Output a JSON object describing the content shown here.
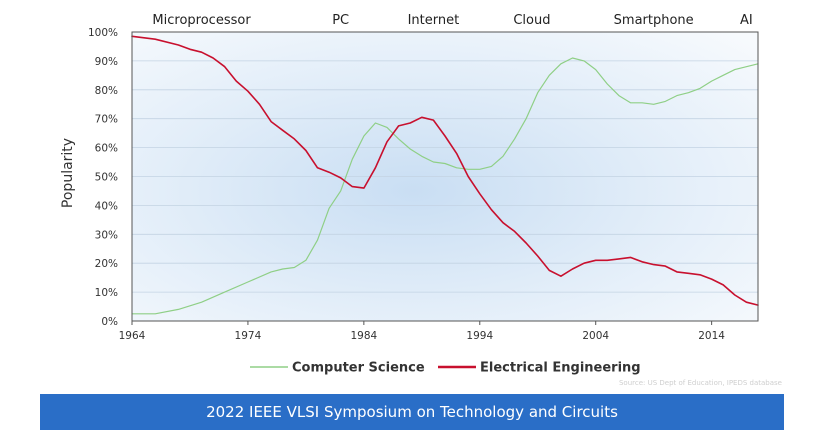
{
  "chart_data": {
    "type": "line",
    "ylabel": "Popularity",
    "xlabel": "",
    "xlim": [
      1964,
      2018
    ],
    "ylim": [
      0,
      100
    ],
    "x_ticks": [
      1964,
      1974,
      1984,
      1994,
      2004,
      2014
    ],
    "y_ticks": [
      {
        "value": 0,
        "label": "0%"
      },
      {
        "value": 10,
        "label": "10%"
      },
      {
        "value": 20,
        "label": "20%"
      },
      {
        "value": 30,
        "label": "30%"
      },
      {
        "value": 40,
        "label": "40%"
      },
      {
        "value": 50,
        "label": "50%"
      },
      {
        "value": 60,
        "label": "60%"
      },
      {
        "value": 70,
        "label": "70%"
      },
      {
        "value": 80,
        "label": "80%"
      },
      {
        "value": 90,
        "label": "90%"
      },
      {
        "value": 100,
        "label": "100%"
      }
    ],
    "grid": true,
    "legend": "bottom-center",
    "annotations": [
      {
        "text": "Microprocessor",
        "x": 1970
      },
      {
        "text": "PC",
        "x": 1982
      },
      {
        "text": "Internet",
        "x": 1990
      },
      {
        "text": "Cloud",
        "x": 1998.5
      },
      {
        "text": "Smartphone",
        "x": 2009
      },
      {
        "text": "AI",
        "x": 2017
      }
    ],
    "series": [
      {
        "name": "Computer Science",
        "color": "#8fcf86",
        "points": [
          [
            1964,
            2.5
          ],
          [
            1966,
            2.5
          ],
          [
            1968,
            4
          ],
          [
            1970,
            6.5
          ],
          [
            1972,
            10
          ],
          [
            1974,
            13.5
          ],
          [
            1976,
            17
          ],
          [
            1977,
            18
          ],
          [
            1978,
            18.5
          ],
          [
            1979,
            21
          ],
          [
            1980,
            28
          ],
          [
            1981,
            39
          ],
          [
            1982,
            45
          ],
          [
            1983,
            56
          ],
          [
            1984,
            64
          ],
          [
            1985,
            68.5
          ],
          [
            1986,
            67
          ],
          [
            1987,
            63
          ],
          [
            1988,
            59.5
          ],
          [
            1989,
            57
          ],
          [
            1990,
            55
          ],
          [
            1991,
            54.5
          ],
          [
            1992,
            53
          ],
          [
            1993,
            52.5
          ],
          [
            1994,
            52.5
          ],
          [
            1995,
            53.5
          ],
          [
            1996,
            57
          ],
          [
            1997,
            63
          ],
          [
            1998,
            70
          ],
          [
            1999,
            79
          ],
          [
            2000,
            85
          ],
          [
            2001,
            89
          ],
          [
            2002,
            91
          ],
          [
            2003,
            90
          ],
          [
            2004,
            87
          ],
          [
            2005,
            82
          ],
          [
            2006,
            78
          ],
          [
            2007,
            75.5
          ],
          [
            2008,
            75.5
          ],
          [
            2009,
            75
          ],
          [
            2010,
            76
          ],
          [
            2011,
            78
          ],
          [
            2012,
            79
          ],
          [
            2013,
            80.5
          ],
          [
            2014,
            83
          ],
          [
            2015,
            85
          ],
          [
            2016,
            87
          ],
          [
            2017,
            88
          ],
          [
            2018,
            89
          ]
        ]
      },
      {
        "name": "Electrical Engineering",
        "color": "#c8102e",
        "points": [
          [
            1964,
            98.5
          ],
          [
            1966,
            97.5
          ],
          [
            1968,
            95.5
          ],
          [
            1969,
            94
          ],
          [
            1970,
            93
          ],
          [
            1971,
            91
          ],
          [
            1972,
            88
          ],
          [
            1973,
            83
          ],
          [
            1974,
            79.5
          ],
          [
            1975,
            75
          ],
          [
            1976,
            69
          ],
          [
            1977,
            66
          ],
          [
            1978,
            63
          ],
          [
            1979,
            59
          ],
          [
            1980,
            53
          ],
          [
            1981,
            51.5
          ],
          [
            1982,
            49.5
          ],
          [
            1983,
            46.5
          ],
          [
            1984,
            46
          ],
          [
            1985,
            53
          ],
          [
            1986,
            62
          ],
          [
            1987,
            67.5
          ],
          [
            1988,
            68.5
          ],
          [
            1989,
            70.5
          ],
          [
            1990,
            69.5
          ],
          [
            1991,
            64
          ],
          [
            1992,
            58
          ],
          [
            1993,
            50
          ],
          [
            1994,
            44
          ],
          [
            1995,
            38.5
          ],
          [
            1996,
            34
          ],
          [
            1997,
            31
          ],
          [
            1998,
            27
          ],
          [
            1999,
            22.5
          ],
          [
            2000,
            17.5
          ],
          [
            2001,
            15.5
          ],
          [
            2002,
            18
          ],
          [
            2003,
            20
          ],
          [
            2004,
            21
          ],
          [
            2005,
            21
          ],
          [
            2006,
            21.5
          ],
          [
            2007,
            22
          ],
          [
            2008,
            20.5
          ],
          [
            2009,
            19.5
          ],
          [
            2010,
            19
          ],
          [
            2011,
            17
          ],
          [
            2012,
            16.5
          ],
          [
            2013,
            16
          ],
          [
            2014,
            14.5
          ],
          [
            2015,
            12.5
          ],
          [
            2016,
            9
          ],
          [
            2017,
            6.5
          ],
          [
            2018,
            5.5
          ]
        ]
      }
    ]
  },
  "source_note": "Source: US Dept of Education, IPEDS database",
  "banner": {
    "text": "2022 IEEE VLSI Symposium on Technology and Circuits"
  }
}
